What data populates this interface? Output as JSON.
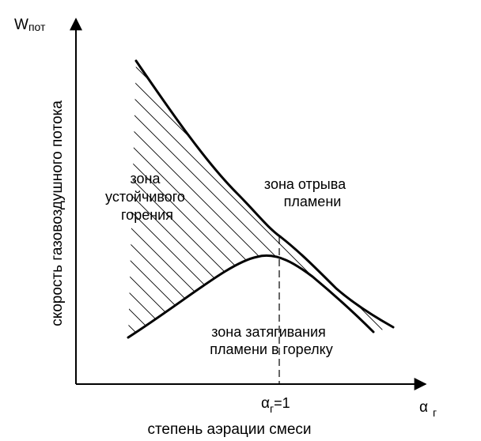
{
  "axes": {
    "y_label": "скорость газовоздушного потока",
    "y_symbol": "W",
    "y_symbol_sub": "пот",
    "x_label": "степень аэрации смеси",
    "x_symbol": "α",
    "x_symbol_sub": "г",
    "marker_symbol": "α",
    "marker_sub": "г",
    "marker_suffix": "=1"
  },
  "zones": {
    "stable": [
      "зона",
      "устойчивого",
      "горения"
    ],
    "liftoff": [
      "зона отрыва",
      "пламени"
    ],
    "flashback": [
      "зона затягивания",
      "пламени  в горелку"
    ]
  },
  "colors": {
    "ink": "#000000",
    "background": "#ffffff"
  }
}
